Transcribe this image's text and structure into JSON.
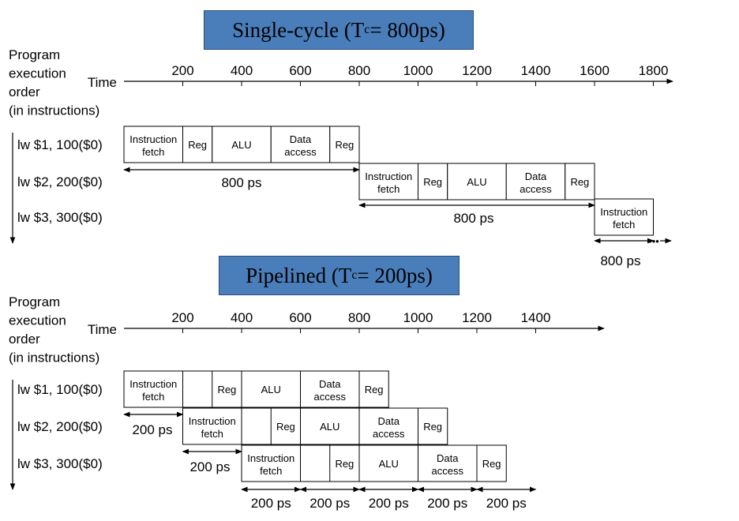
{
  "single_cycle": {
    "title_main": "Single-cycle (T",
    "title_sub": "c",
    "title_rest": "= 800ps)",
    "y_label_lines": [
      "Program",
      "execution",
      "order",
      "(in instructions)"
    ],
    "time_label": "Time",
    "ticks": [
      "200",
      "400",
      "600",
      "800",
      "1000",
      "1200",
      "1400",
      "1600",
      "1800"
    ],
    "instructions": [
      "lw  $1, 100($0)",
      "lw  $2, 200($0)",
      "lw  $3, 300($0)"
    ],
    "stages": [
      "Instruction|fetch",
      "Reg",
      "ALU",
      "Data|access",
      "Reg"
    ],
    "durations": [
      "800 ps",
      "800 ps",
      "800 ps"
    ],
    "ellipsis": "•••"
  },
  "pipelined": {
    "title_main": "Pipelined (T",
    "title_sub": "c",
    "title_rest": "= 200ps)",
    "y_label_lines": [
      "Program",
      "execution",
      "order",
      "(in instructions)"
    ],
    "time_label": "Time",
    "ticks": [
      "200",
      "400",
      "600",
      "800",
      "1000",
      "1200",
      "1400"
    ],
    "instructions": [
      "lw  $1, 100($0)",
      "lw  $2, 200($0)",
      "lw  $3, 300($0)"
    ],
    "stages": [
      "Instruction|fetch",
      "Reg",
      "ALU",
      "Data|access",
      "Reg"
    ],
    "durations": [
      "200 ps",
      "200 ps",
      "200 ps",
      "200 ps",
      "200 ps",
      "200 ps",
      "200 ps"
    ]
  }
}
